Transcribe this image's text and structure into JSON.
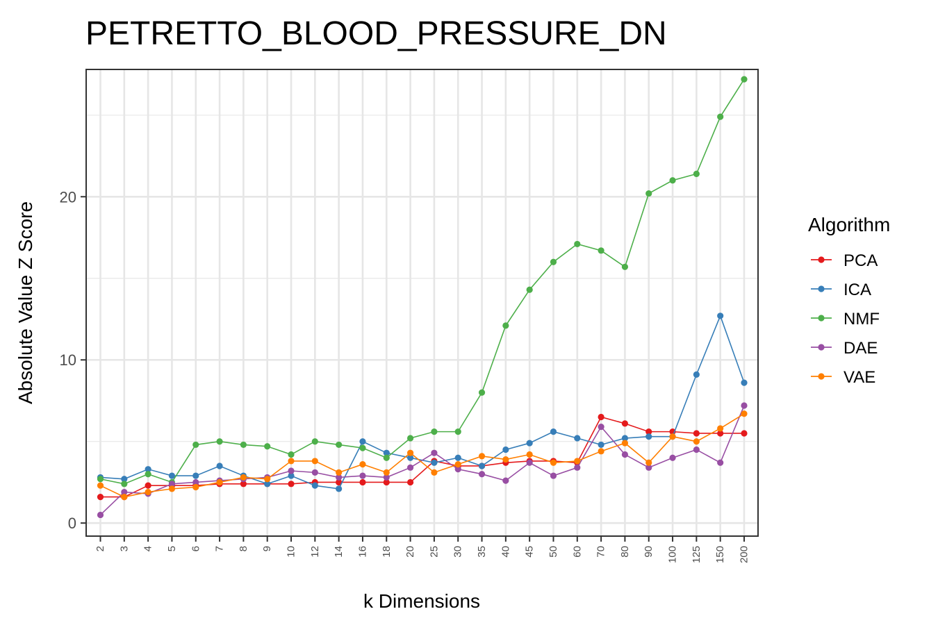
{
  "chart_data": {
    "type": "line",
    "title": "PETRETTO_BLOOD_PRESSURE_DN",
    "xlabel": "k Dimensions",
    "ylabel": "Absolute Value Z Score",
    "categories": [
      "2",
      "3",
      "4",
      "5",
      "6",
      "7",
      "8",
      "9",
      "10",
      "12",
      "14",
      "16",
      "18",
      "20",
      "25",
      "30",
      "35",
      "40",
      "45",
      "50",
      "60",
      "70",
      "80",
      "90",
      "100",
      "125",
      "150",
      "200"
    ],
    "ylim": [
      -0.8,
      27.8
    ],
    "yticks": [
      0,
      10,
      20
    ],
    "grid": true,
    "legend_title": "Algorithm",
    "legend_position": "right",
    "series": [
      {
        "name": "PCA",
        "color": "#e41a1c",
        "values": [
          1.6,
          1.6,
          2.3,
          2.3,
          2.3,
          2.4,
          2.4,
          2.4,
          2.4,
          2.5,
          2.5,
          2.5,
          2.5,
          2.5,
          3.8,
          3.5,
          3.5,
          3.7,
          3.8,
          3.8,
          3.7,
          6.5,
          6.1,
          5.6,
          5.6,
          5.5,
          5.5,
          5.5
        ]
      },
      {
        "name": "ICA",
        "color": "#377eb8",
        "values": [
          2.8,
          2.7,
          3.3,
          2.9,
          2.9,
          3.5,
          2.9,
          2.4,
          2.9,
          2.3,
          2.1,
          5.0,
          4.3,
          4.0,
          3.7,
          4.0,
          3.5,
          4.5,
          4.9,
          5.6,
          5.2,
          4.8,
          5.2,
          5.3,
          5.3,
          9.1,
          12.7,
          8.6
        ]
      },
      {
        "name": "NMF",
        "color": "#4daf4a",
        "values": [
          2.7,
          2.4,
          3.0,
          2.5,
          4.8,
          5.0,
          4.8,
          4.7,
          4.2,
          5.0,
          4.8,
          4.6,
          4.0,
          5.2,
          5.6,
          5.6,
          8.0,
          12.1,
          14.3,
          16.0,
          17.1,
          16.7,
          15.7,
          20.2,
          21.0,
          21.4,
          24.9,
          27.2
        ]
      },
      {
        "name": "DAE",
        "color": "#984ea3",
        "values": [
          0.5,
          1.9,
          1.8,
          2.4,
          2.5,
          2.6,
          2.7,
          2.8,
          3.2,
          3.1,
          2.8,
          2.9,
          2.8,
          3.4,
          4.3,
          3.3,
          3.0,
          2.6,
          3.7,
          2.9,
          3.4,
          5.9,
          4.2,
          3.4,
          4.0,
          4.5,
          3.7,
          7.2
        ]
      },
      {
        "name": "VAE",
        "color": "#ff7f00",
        "values": [
          2.3,
          1.6,
          1.9,
          2.1,
          2.2,
          2.5,
          2.8,
          2.7,
          3.8,
          3.8,
          3.1,
          3.6,
          3.1,
          4.3,
          3.1,
          3.6,
          4.1,
          3.9,
          4.2,
          3.7,
          3.8,
          4.4,
          4.9,
          3.7,
          5.3,
          5.0,
          5.8,
          6.7
        ]
      }
    ]
  }
}
